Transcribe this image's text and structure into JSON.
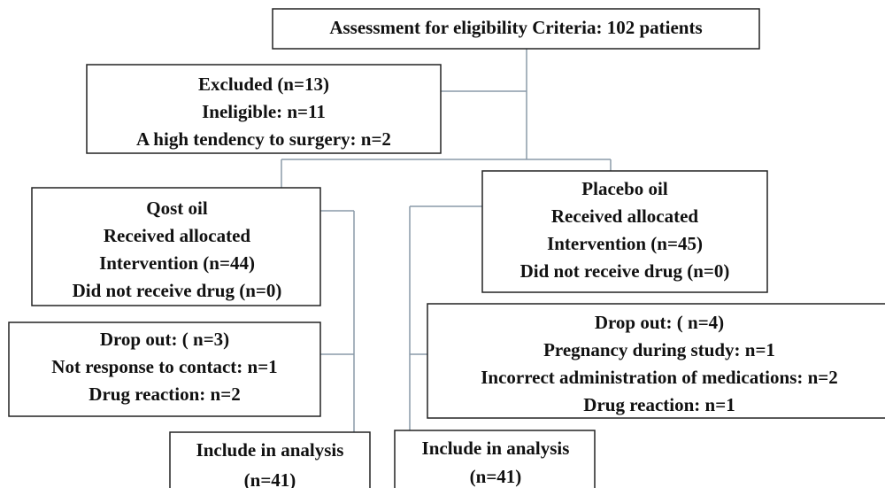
{
  "nodes": [
    {
      "lines": [
        "Assessment for eligibility Criteria: 102 patients"
      ]
    },
    {
      "lines": [
        "Excluded (n=13)",
        "Ineligible: n=11",
        "A high tendency to surgery: n=2"
      ]
    },
    {
      "lines": [
        "Qost oil",
        "Received allocated",
        "Intervention (n=44)",
        "Did not receive drug (n=0)"
      ]
    },
    {
      "lines": [
        "Placebo oil",
        "Received allocated",
        "Intervention (n=45)",
        "Did not receive drug (n=0)"
      ]
    },
    {
      "lines": [
        "Drop out: ( n=3)",
        "Not response to contact: n=1",
        "Drug reaction: n=2"
      ]
    },
    {
      "lines": [
        "Drop out: ( n=4)",
        "Pregnancy during study: n=1",
        "Incorrect administration of medications: n=2",
        "Drug reaction: n=1"
      ]
    },
    {
      "lines": [
        "Include in analysis",
        "(n=41)"
      ]
    },
    {
      "lines": [
        "Include in analysis",
        "(n=41)"
      ]
    }
  ]
}
